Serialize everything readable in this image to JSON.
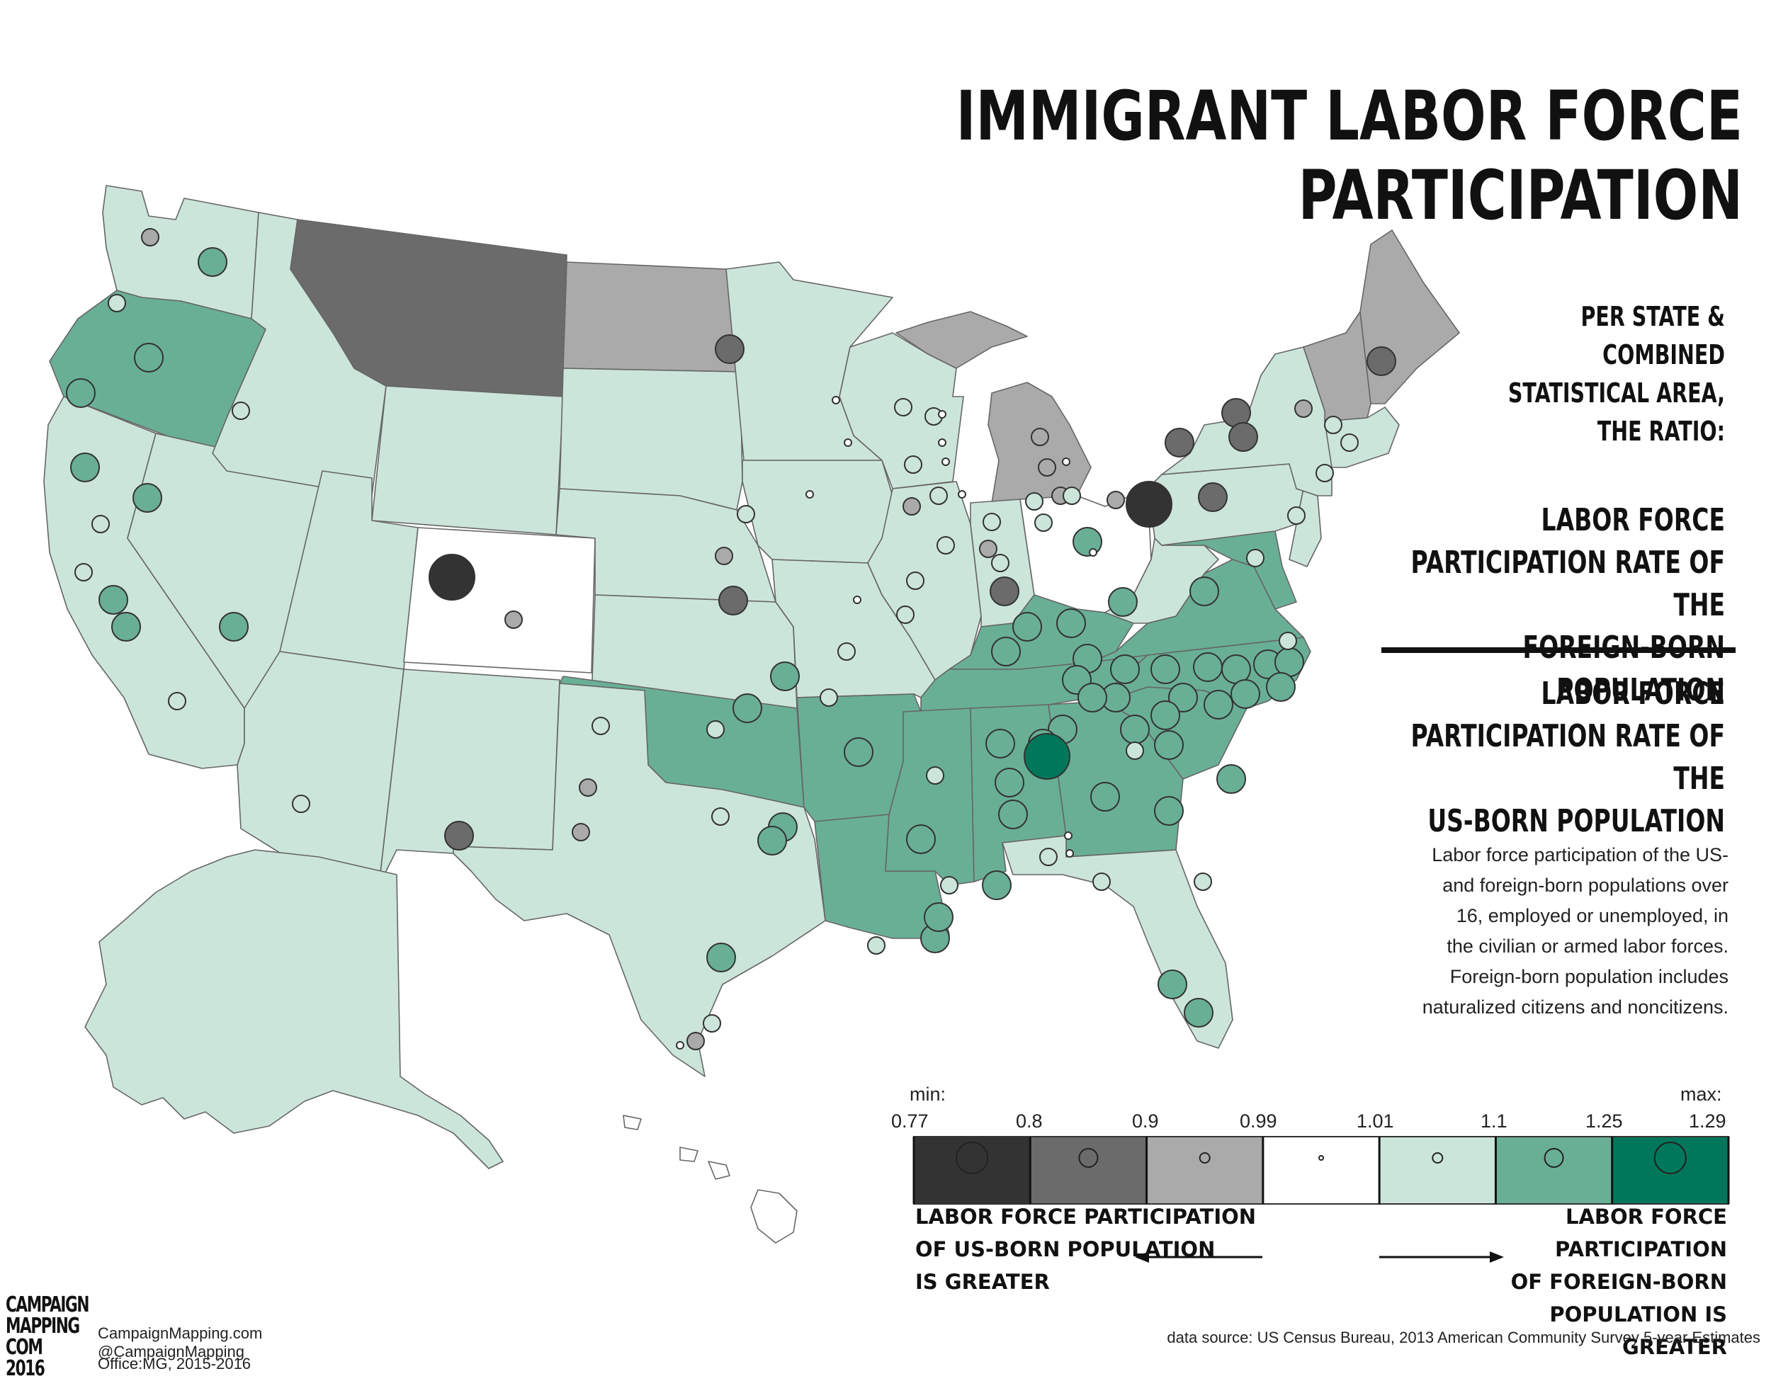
{
  "title": "IMMIGRANT LABOR FORCE PARTICIPATION",
  "subtitle_lines": [
    "PER STATE &",
    "COMBINED",
    "STATISTICAL AREA,",
    "THE RATIO:"
  ],
  "numerator_lines": [
    "LABOR FORCE",
    "PARTICIPATION RATE OF THE",
    "FOREIGN-BORN POPULATION"
  ],
  "denominator_lines": [
    "LABOR FORCE",
    "PARTICIPATION RATE OF THE",
    "US-BORN POPULATION"
  ],
  "description_lines": [
    "Labor force participation of the US-",
    "and foreign-born populations over",
    "16, employed or unemployed, in",
    "the civilian or armed labor forces.",
    "Foreign-born population includes",
    "naturalized citizens and noncitizens."
  ],
  "legend": {
    "min_label": "min:",
    "max_label": "max:",
    "breaks": [
      "0.77",
      "0.8",
      "0.9",
      "0.99",
      "1.01",
      "1.1",
      "1.25",
      "1.29"
    ],
    "class_colors": [
      "#333333",
      "#6b6b6b",
      "#aaaaaa",
      "#ffffff",
      "#cce5da",
      "#69af96",
      "#00775a"
    ],
    "left_note_lines": [
      "LABOR FORCE PARTICIPATION",
      "OF US-BORN POPULATION",
      "IS GREATER"
    ],
    "right_note_lines": [
      "LABOR FORCE PARTICIPATION",
      "OF FOREIGN-BORN",
      "POPULATION IS GREATER"
    ]
  },
  "source": "data source: US Census Bureau, 2013 American Community Survey 5-year Estimates",
  "logo_lines": [
    "CAMPAIGN",
    "MAPPING",
    "COM 2016"
  ],
  "credits": [
    "CampaignMapping.com",
    "@CampaignMapping",
    "Office:MG, 2015-2016"
  ],
  "colors": {
    "background": "#ffffff",
    "state_border": "#666666",
    "circle_stroke": "#333333"
  }
}
